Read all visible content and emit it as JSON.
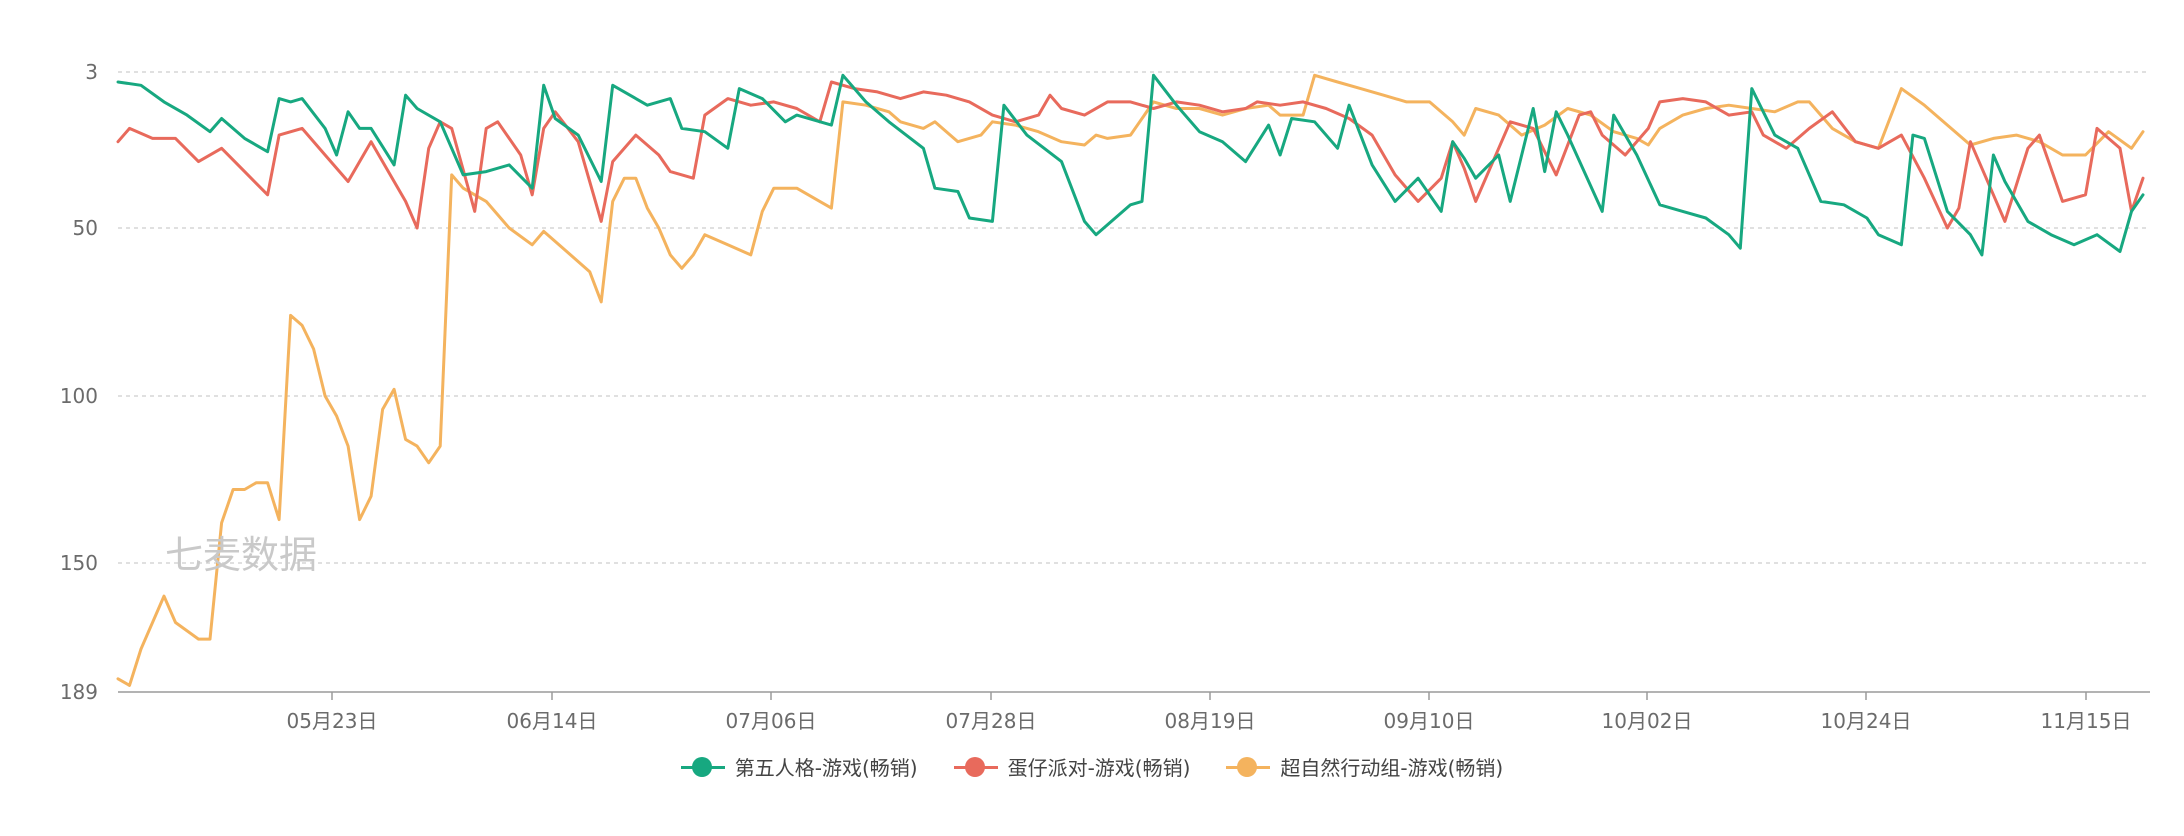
{
  "chart_data": {
    "type": "line",
    "y_reversed": true,
    "ylim": [
      3,
      189
    ],
    "y_ticks": [
      "3",
      "50",
      "100",
      "150",
      "189"
    ],
    "x_ticks": [
      "05月23日",
      "06月14日",
      "07月06日",
      "07月28日",
      "08月19日",
      "09月10日",
      "10月02日",
      "10月24日",
      "11月15日"
    ],
    "watermark": "七麦数据",
    "colors": {
      "green": "#17a880",
      "red": "#e86a5c",
      "orange": "#f4b35e"
    },
    "series": [
      {
        "name": "第五人格-游戏(畅销)",
        "color": "#17a880",
        "points": [
          [
            0,
            6
          ],
          [
            2,
            7
          ],
          [
            4,
            12
          ],
          [
            6,
            16
          ],
          [
            8,
            21
          ],
          [
            9,
            17
          ],
          [
            11,
            23
          ],
          [
            13,
            27
          ],
          [
            14,
            11
          ],
          [
            15,
            12
          ],
          [
            16,
            11
          ],
          [
            18,
            20
          ],
          [
            19,
            28
          ],
          [
            20,
            15
          ],
          [
            21,
            20
          ],
          [
            22,
            20
          ],
          [
            24,
            31
          ],
          [
            25,
            10
          ],
          [
            26,
            14
          ],
          [
            28,
            18
          ],
          [
            30,
            34
          ],
          [
            32,
            33
          ],
          [
            34,
            31
          ],
          [
            36,
            38
          ],
          [
            37,
            7
          ],
          [
            38,
            17
          ],
          [
            40,
            22
          ],
          [
            42,
            36
          ],
          [
            43,
            7
          ],
          [
            44,
            9
          ],
          [
            46,
            13
          ],
          [
            48,
            11
          ],
          [
            49,
            20
          ],
          [
            51,
            21
          ],
          [
            53,
            26
          ],
          [
            54,
            8
          ],
          [
            56,
            11
          ],
          [
            58,
            18
          ],
          [
            59,
            16
          ],
          [
            62,
            19
          ],
          [
            63,
            4
          ],
          [
            65,
            12
          ],
          [
            67,
            18
          ],
          [
            70,
            26
          ],
          [
            71,
            38
          ],
          [
            73,
            39
          ],
          [
            74,
            47
          ],
          [
            76,
            48
          ],
          [
            77,
            13
          ],
          [
            79,
            22
          ],
          [
            82,
            30
          ],
          [
            84,
            48
          ],
          [
            85,
            52
          ],
          [
            86,
            49
          ],
          [
            88,
            43
          ],
          [
            89,
            42
          ],
          [
            90,
            4
          ],
          [
            92,
            13
          ],
          [
            94,
            21
          ],
          [
            96,
            24
          ],
          [
            98,
            30
          ],
          [
            100,
            19
          ],
          [
            101,
            28
          ],
          [
            102,
            17
          ],
          [
            104,
            18
          ],
          [
            106,
            26
          ],
          [
            107,
            13
          ],
          [
            109,
            31
          ],
          [
            111,
            42
          ],
          [
            113,
            35
          ],
          [
            115,
            45
          ],
          [
            116,
            24
          ],
          [
            117,
            29
          ],
          [
            118,
            35
          ],
          [
            120,
            28
          ],
          [
            121,
            42
          ],
          [
            123,
            14
          ],
          [
            124,
            33
          ],
          [
            125,
            15
          ],
          [
            126,
            22
          ],
          [
            129,
            45
          ],
          [
            130,
            16
          ],
          [
            132,
            28
          ],
          [
            134,
            43
          ],
          [
            136,
            45
          ],
          [
            138,
            47
          ],
          [
            140,
            52
          ],
          [
            141,
            56
          ],
          [
            142,
            8
          ],
          [
            144,
            22
          ],
          [
            146,
            26
          ],
          [
            148,
            42
          ],
          [
            150,
            43
          ],
          [
            152,
            47
          ],
          [
            153,
            52
          ],
          [
            155,
            55
          ],
          [
            156,
            22
          ],
          [
            157,
            23
          ],
          [
            159,
            45
          ],
          [
            161,
            52
          ],
          [
            162,
            58
          ],
          [
            163,
            28
          ],
          [
            164,
            36
          ],
          [
            166,
            48
          ],
          [
            168,
            52
          ],
          [
            170,
            55
          ],
          [
            172,
            52
          ],
          [
            174,
            57
          ],
          [
            175,
            45
          ],
          [
            176,
            40
          ]
        ]
      },
      {
        "name": "蛋仔派对-游戏(畅销)",
        "color": "#e86a5c",
        "points": [
          [
            0,
            24
          ],
          [
            1,
            20
          ],
          [
            3,
            23
          ],
          [
            5,
            23
          ],
          [
            7,
            30
          ],
          [
            9,
            26
          ],
          [
            11,
            33
          ],
          [
            13,
            40
          ],
          [
            14,
            22
          ],
          [
            16,
            20
          ],
          [
            18,
            28
          ],
          [
            20,
            36
          ],
          [
            22,
            24
          ],
          [
            23,
            30
          ],
          [
            25,
            42
          ],
          [
            26,
            50
          ],
          [
            27,
            26
          ],
          [
            28,
            18
          ],
          [
            29,
            20
          ],
          [
            31,
            45
          ],
          [
            32,
            20
          ],
          [
            33,
            18
          ],
          [
            35,
            28
          ],
          [
            36,
            40
          ],
          [
            37,
            20
          ],
          [
            38,
            15
          ],
          [
            40,
            24
          ],
          [
            42,
            48
          ],
          [
            43,
            30
          ],
          [
            45,
            22
          ],
          [
            47,
            28
          ],
          [
            48,
            33
          ],
          [
            50,
            35
          ],
          [
            51,
            16
          ],
          [
            53,
            11
          ],
          [
            55,
            13
          ],
          [
            57,
            12
          ],
          [
            59,
            14
          ],
          [
            61,
            18
          ],
          [
            62,
            6
          ],
          [
            64,
            8
          ],
          [
            66,
            9
          ],
          [
            68,
            11
          ],
          [
            70,
            9
          ],
          [
            72,
            10
          ],
          [
            74,
            12
          ],
          [
            76,
            16
          ],
          [
            78,
            18
          ],
          [
            80,
            16
          ],
          [
            81,
            10
          ],
          [
            82,
            14
          ],
          [
            84,
            16
          ],
          [
            86,
            12
          ],
          [
            88,
            12
          ],
          [
            90,
            14
          ],
          [
            92,
            12
          ],
          [
            94,
            13
          ],
          [
            96,
            15
          ],
          [
            98,
            14
          ],
          [
            99,
            12
          ],
          [
            101,
            13
          ],
          [
            103,
            12
          ],
          [
            105,
            14
          ],
          [
            107,
            17
          ],
          [
            109,
            22
          ],
          [
            111,
            34
          ],
          [
            113,
            42
          ],
          [
            115,
            35
          ],
          [
            116,
            24
          ],
          [
            117,
            32
          ],
          [
            118,
            42
          ],
          [
            120,
            26
          ],
          [
            121,
            18
          ],
          [
            123,
            20
          ],
          [
            125,
            34
          ],
          [
            127,
            16
          ],
          [
            128,
            15
          ],
          [
            129,
            22
          ],
          [
            131,
            28
          ],
          [
            133,
            20
          ],
          [
            134,
            12
          ],
          [
            136,
            11
          ],
          [
            138,
            12
          ],
          [
            140,
            16
          ],
          [
            142,
            15
          ],
          [
            143,
            22
          ],
          [
            145,
            26
          ],
          [
            147,
            20
          ],
          [
            149,
            15
          ],
          [
            151,
            24
          ],
          [
            153,
            26
          ],
          [
            155,
            22
          ],
          [
            157,
            35
          ],
          [
            159,
            50
          ],
          [
            160,
            44
          ],
          [
            161,
            24
          ],
          [
            163,
            40
          ],
          [
            164,
            48
          ],
          [
            166,
            26
          ],
          [
            167,
            22
          ],
          [
            169,
            42
          ],
          [
            171,
            40
          ],
          [
            172,
            20
          ],
          [
            174,
            26
          ],
          [
            175,
            45
          ],
          [
            176,
            35
          ]
        ]
      },
      {
        "name": "超自然行动组-游戏(畅销)",
        "color": "#f4b35e",
        "points": [
          [
            0,
            185
          ],
          [
            1,
            187
          ],
          [
            2,
            176
          ],
          [
            4,
            160
          ],
          [
            5,
            168
          ],
          [
            7,
            173
          ],
          [
            8,
            173
          ],
          [
            9,
            138
          ],
          [
            10,
            128
          ],
          [
            11,
            128
          ],
          [
            12,
            126
          ],
          [
            13,
            126
          ],
          [
            14,
            137
          ],
          [
            15,
            76
          ],
          [
            16,
            79
          ],
          [
            17,
            86
          ],
          [
            18,
            100
          ],
          [
            19,
            106
          ],
          [
            20,
            115
          ],
          [
            21,
            137
          ],
          [
            22,
            130
          ],
          [
            23,
            104
          ],
          [
            24,
            98
          ],
          [
            25,
            113
          ],
          [
            26,
            115
          ],
          [
            27,
            120
          ],
          [
            28,
            115
          ],
          [
            29,
            34
          ],
          [
            30,
            38
          ],
          [
            32,
            42
          ],
          [
            34,
            50
          ],
          [
            36,
            55
          ],
          [
            37,
            51
          ],
          [
            39,
            57
          ],
          [
            41,
            63
          ],
          [
            42,
            72
          ],
          [
            43,
            42
          ],
          [
            44,
            35
          ],
          [
            45,
            35
          ],
          [
            46,
            44
          ],
          [
            47,
            50
          ],
          [
            48,
            58
          ],
          [
            49,
            62
          ],
          [
            50,
            58
          ],
          [
            51,
            52
          ],
          [
            53,
            55
          ],
          [
            55,
            58
          ],
          [
            56,
            45
          ],
          [
            57,
            38
          ],
          [
            59,
            38
          ],
          [
            61,
            42
          ],
          [
            62,
            44
          ],
          [
            63,
            12
          ],
          [
            65,
            13
          ],
          [
            67,
            15
          ],
          [
            68,
            18
          ],
          [
            70,
            20
          ],
          [
            71,
            18
          ],
          [
            73,
            24
          ],
          [
            75,
            22
          ],
          [
            76,
            18
          ],
          [
            78,
            19
          ],
          [
            80,
            21
          ],
          [
            82,
            24
          ],
          [
            84,
            25
          ],
          [
            85,
            22
          ],
          [
            86,
            23
          ],
          [
            88,
            22
          ],
          [
            90,
            12
          ],
          [
            92,
            14
          ],
          [
            94,
            14
          ],
          [
            96,
            16
          ],
          [
            98,
            14
          ],
          [
            100,
            13
          ],
          [
            101,
            16
          ],
          [
            103,
            16
          ],
          [
            104,
            4
          ],
          [
            106,
            6
          ],
          [
            108,
            8
          ],
          [
            110,
            10
          ],
          [
            112,
            12
          ],
          [
            114,
            12
          ],
          [
            116,
            18
          ],
          [
            117,
            22
          ],
          [
            118,
            14
          ],
          [
            120,
            16
          ],
          [
            122,
            22
          ],
          [
            124,
            19
          ],
          [
            126,
            14
          ],
          [
            128,
            16
          ],
          [
            130,
            21
          ],
          [
            132,
            23
          ],
          [
            133,
            25
          ],
          [
            134,
            20
          ],
          [
            136,
            16
          ],
          [
            138,
            14
          ],
          [
            140,
            13
          ],
          [
            142,
            14
          ],
          [
            144,
            15
          ],
          [
            146,
            12
          ],
          [
            147,
            12
          ],
          [
            149,
            20
          ],
          [
            151,
            24
          ],
          [
            153,
            26
          ],
          [
            155,
            8
          ],
          [
            157,
            13
          ],
          [
            159,
            19
          ],
          [
            161,
            25
          ],
          [
            163,
            23
          ],
          [
            165,
            22
          ],
          [
            167,
            24
          ],
          [
            169,
            28
          ],
          [
            171,
            28
          ],
          [
            173,
            21
          ],
          [
            175,
            26
          ],
          [
            176,
            21
          ]
        ]
      }
    ]
  }
}
